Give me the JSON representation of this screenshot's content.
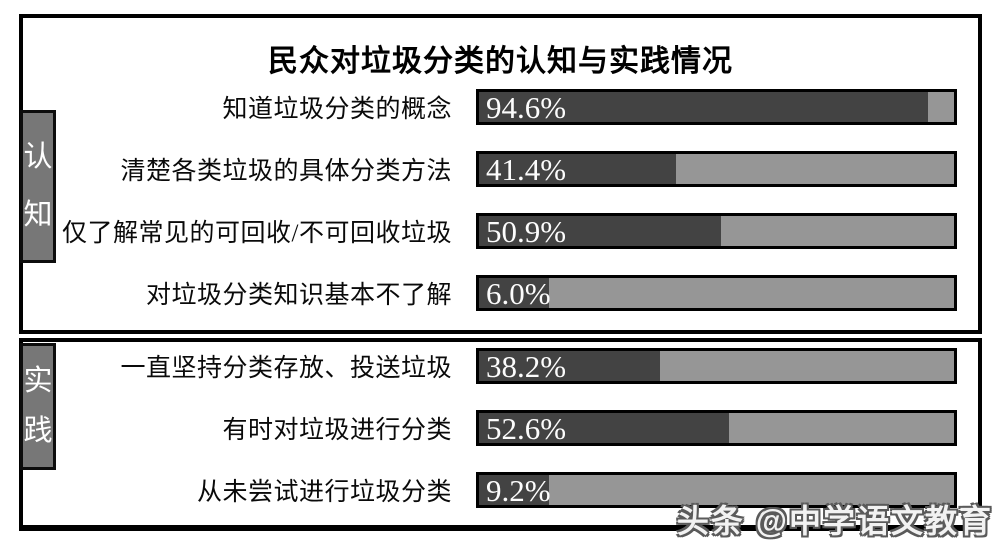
{
  "chart_data": {
    "type": "bar",
    "orientation": "horizontal",
    "title": "民众对垃圾分类的认知与实践情况",
    "unit": "%",
    "xlim": [
      0,
      100
    ],
    "grid": false,
    "legend": "none",
    "groups": [
      {
        "name": "认知",
        "items": [
          {
            "label": "知道垃圾分类的概念",
            "value": 94.6,
            "display": "94.6%"
          },
          {
            "label": "清楚各类垃圾的具体分类方法",
            "value": 41.4,
            "display": "41.4%"
          },
          {
            "label": "仅了解常见的可回收/不可回收垃圾",
            "value": 50.9,
            "display": "50.9%"
          },
          {
            "label": "对垃圾分类知识基本不了解",
            "value": 6.0,
            "display": "6.0%"
          }
        ]
      },
      {
        "name": "实践",
        "items": [
          {
            "label": "一直坚持分类存放、投送垃圾",
            "value": 38.2,
            "display": "38.2%"
          },
          {
            "label": "有时对垃圾进行分类",
            "value": 52.6,
            "display": "52.6%"
          },
          {
            "label": "从未尝试进行垃圾分类",
            "value": 9.2,
            "display": "9.2%"
          }
        ]
      }
    ],
    "colors": {
      "bar_fill": "#434343",
      "bar_track": "#969696",
      "category_tab": "#777777",
      "border": "#000000",
      "value_text": "#fcfcfc"
    }
  },
  "watermark": "头条 @中学语文教育"
}
